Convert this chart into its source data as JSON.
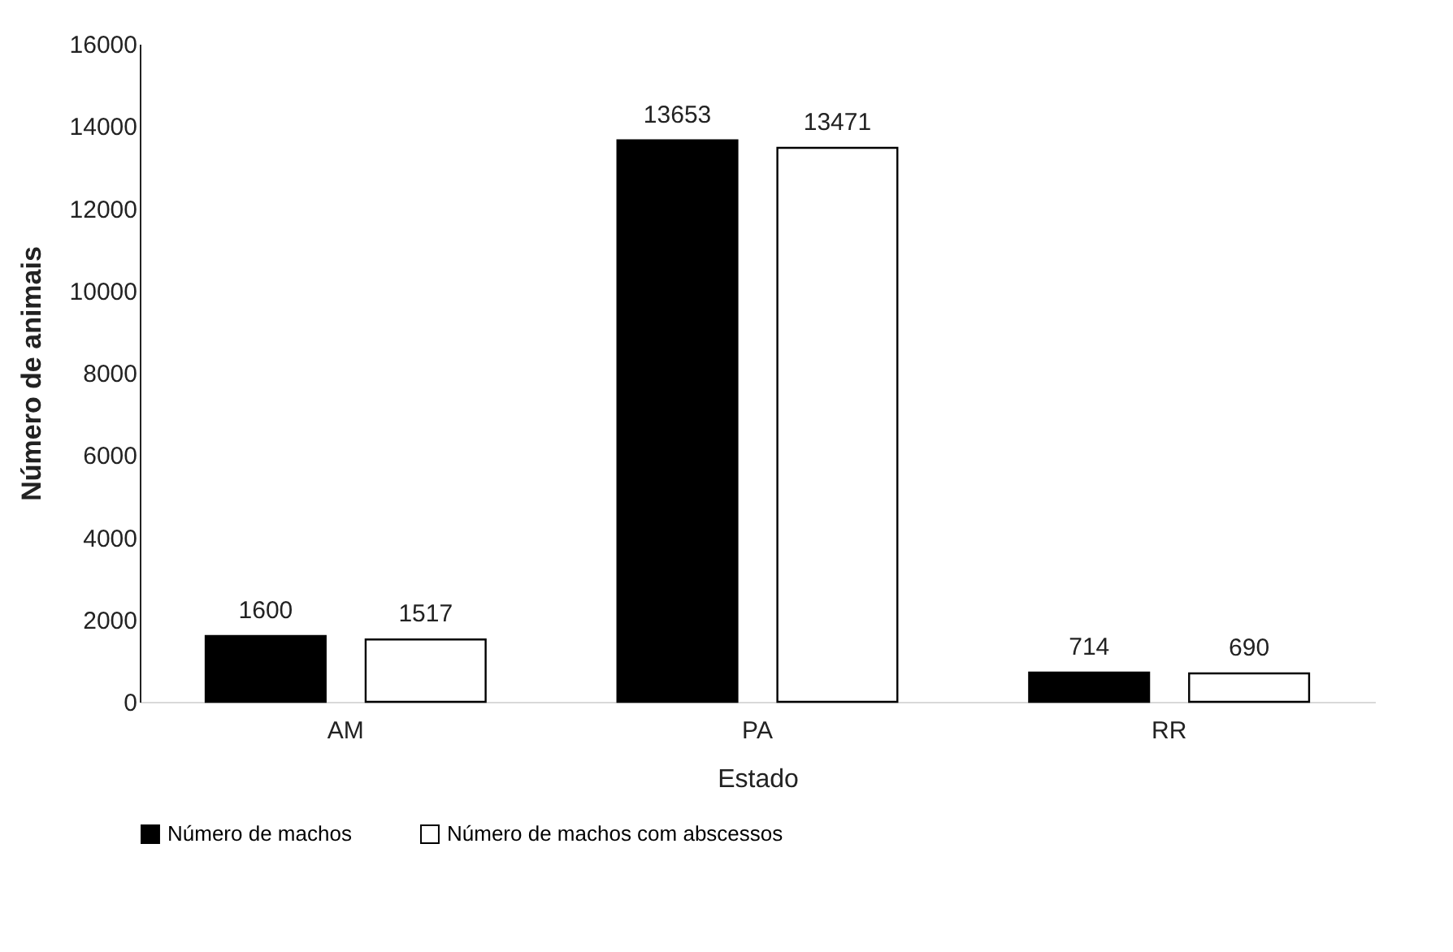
{
  "chart_data": {
    "type": "bar",
    "xlabel": "Estado",
    "ylabel": "Número de animais",
    "categories": [
      "AM",
      "PA",
      "RR"
    ],
    "series": [
      {
        "name": "Número de machos",
        "color": "#000000",
        "values": [
          1600,
          13653,
          714
        ]
      },
      {
        "name": "Número de machos com abscessos",
        "color": "#ffffff",
        "values": [
          1517,
          13471,
          690
        ]
      }
    ],
    "ylim": [
      0,
      16000
    ],
    "yticks": [
      0,
      2000,
      4000,
      6000,
      8000,
      10000,
      12000,
      14000,
      16000
    ],
    "data_labels": true,
    "legend": "bottom"
  }
}
